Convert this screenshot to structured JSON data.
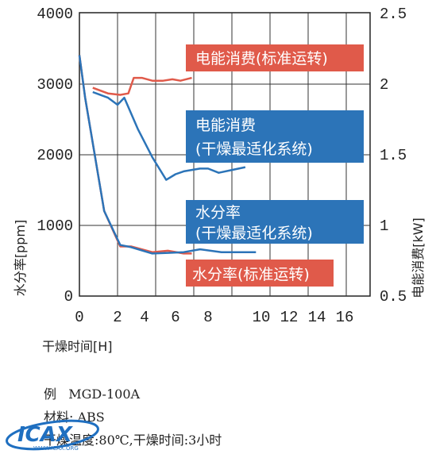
{
  "chart_data": {
    "type": "line",
    "xlabel": "干燥时间[H]",
    "ylabel_left": "水分率[ppm]",
    "ylabel_right": "电能消费[kW]",
    "xlim": [
      0,
      16
    ],
    "ylim_left": [
      0,
      4000
    ],
    "ylim_right": [
      0.5,
      2.5
    ],
    "x_ticks": [
      "0",
      "2",
      "4",
      "6",
      "8",
      "10",
      "12",
      "14",
      "16"
    ],
    "y_ticks_left": [
      "0",
      "1000",
      "2000",
      "3000",
      "4000"
    ],
    "y_ticks_right": [
      "0.5",
      "1",
      "1.5",
      "2",
      "2.5"
    ],
    "grid": true,
    "series": [
      {
        "name": "电能消费(标准运转)",
        "axis": "right",
        "color": "#e05a4a",
        "x": [
          0.7,
          1.5,
          2.2,
          2.8,
          3.2,
          3.8,
          4.5,
          5.2,
          5.8,
          6.3,
          7
        ],
        "y": [
          1.97,
          1.93,
          1.92,
          1.93,
          2.04,
          2.04,
          2.02,
          2.02,
          2.03,
          2.02,
          2.04
        ]
      },
      {
        "name": "电能消费\n(干燥最适化系统)",
        "axis": "right",
        "color": "#2c74b8",
        "x": [
          0.7,
          1.5,
          2,
          2.5,
          3.5,
          4.5,
          5.4,
          6,
          6.5,
          7,
          7.5,
          8,
          8.4,
          8.9,
          9.4
        ],
        "y": [
          1.94,
          1.9,
          1.85,
          1.9,
          1.68,
          1.48,
          1.32,
          1.36,
          1.38,
          1.39,
          1.4,
          1.4,
          1.37,
          1.39,
          1.41
        ]
      },
      {
        "name": "水分率(标准运转)",
        "axis": "left",
        "color": "#e05a4a",
        "x": [
          0,
          0.3,
          1.3,
          2.2,
          3,
          4.5,
          5.5,
          6.5,
          7
        ],
        "y": [
          3400,
          2800,
          1200,
          700,
          700,
          620,
          640,
          600,
          600
        ]
      },
      {
        "name": "水分率\n(干燥最适化系统)",
        "axis": "left",
        "color": "#2c74b8",
        "x": [
          0,
          0.3,
          1.3,
          2.2,
          3,
          4.5,
          5.5,
          6.5,
          7.5,
          8.5,
          9.8
        ],
        "y": [
          3400,
          2800,
          1200,
          720,
          690,
          600,
          610,
          620,
          660,
          620,
          620
        ]
      }
    ],
    "annotations": [
      {
        "text": "电能消费(标准运转)",
        "color": "#e05a4a"
      },
      {
        "text": "电能消费\n(干燥最适化系统)",
        "color": "#2c74b8"
      },
      {
        "text": "水分率\n(干燥最适化系统)",
        "color": "#2c74b8"
      },
      {
        "text": "水分率(标准运转)",
        "color": "#e05a4a"
      }
    ]
  },
  "notes": {
    "example": "例   MGD-100A",
    "material": "材料: ABS",
    "condition": "干燥温度:80℃,干燥时间:3小时"
  },
  "watermark": {
    "text": "ICAX",
    "subtext": "WWW.ICAX.ORG",
    "color": "#1f6fc0"
  }
}
